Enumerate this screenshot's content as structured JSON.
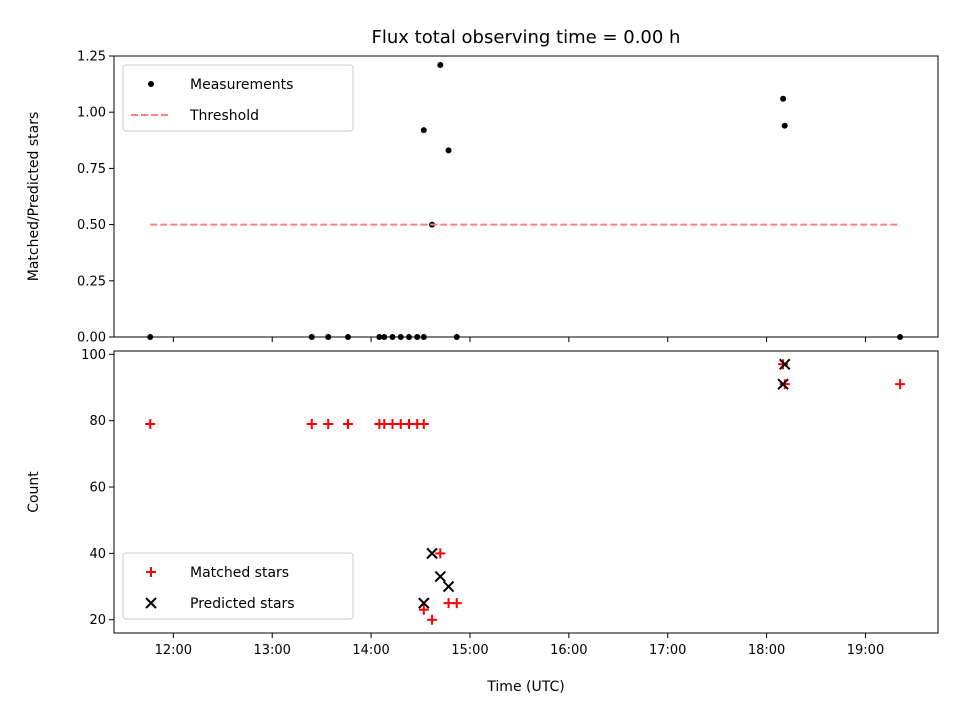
{
  "chart_data": [
    {
      "type": "scatter",
      "title": "Flux total observing time = 0.00 h",
      "xlabel": "",
      "ylabel": "Matched/Predicted stars",
      "ylim": [
        0,
        1.25
      ],
      "xlim": [
        "11:24",
        "19:44"
      ],
      "yticks": [
        "0.00",
        "0.25",
        "0.50",
        "0.75",
        "1.00",
        "1.25"
      ],
      "legend_position": "top-left",
      "series": [
        {
          "name": "Measurements",
          "marker": "dot",
          "color": "#000000",
          "points": [
            {
              "x": "11:46",
              "y": 0
            },
            {
              "x": "13:24",
              "y": 0
            },
            {
              "x": "13:34",
              "y": 0
            },
            {
              "x": "13:46",
              "y": 0
            },
            {
              "x": "14:05",
              "y": 0
            },
            {
              "x": "14:08",
              "y": 0
            },
            {
              "x": "14:13",
              "y": 0
            },
            {
              "x": "14:18",
              "y": 0
            },
            {
              "x": "14:23",
              "y": 0
            },
            {
              "x": "14:28",
              "y": 0
            },
            {
              "x": "14:32",
              "y": 0
            },
            {
              "x": "14:52",
              "y": 0
            },
            {
              "x": "19:21",
              "y": 0
            },
            {
              "x": "14:32",
              "y": 0.92
            },
            {
              "x": "14:37",
              "y": 0.5
            },
            {
              "x": "14:42",
              "y": 1.21
            },
            {
              "x": "14:47",
              "y": 0.83
            },
            {
              "x": "18:10",
              "y": 1.06
            },
            {
              "x": "18:11",
              "y": 0.94
            }
          ]
        },
        {
          "name": "Threshold",
          "marker": "dashed-line",
          "color": "#ff7f7f",
          "points": [
            {
              "x": "11:46",
              "y": 0.5
            },
            {
              "x": "19:21",
              "y": 0.5
            }
          ]
        }
      ]
    },
    {
      "type": "scatter",
      "title": "",
      "xlabel": "Time (UTC)",
      "ylabel": "Count",
      "ylim": [
        16,
        101
      ],
      "xlim": [
        "11:24",
        "19:44"
      ],
      "xticks": [
        "12:00",
        "13:00",
        "14:00",
        "15:00",
        "16:00",
        "17:00",
        "18:00",
        "19:00"
      ],
      "yticks": [
        "20",
        "40",
        "60",
        "80",
        "100"
      ],
      "legend_position": "bottom-left",
      "series": [
        {
          "name": "Matched stars",
          "marker": "plus",
          "color": "#ff0000",
          "points": [
            {
              "x": "11:46",
              "y": 79
            },
            {
              "x": "13:24",
              "y": 79
            },
            {
              "x": "13:34",
              "y": 79
            },
            {
              "x": "13:46",
              "y": 79
            },
            {
              "x": "14:05",
              "y": 79
            },
            {
              "x": "14:08",
              "y": 79
            },
            {
              "x": "14:13",
              "y": 79
            },
            {
              "x": "14:18",
              "y": 79
            },
            {
              "x": "14:23",
              "y": 79
            },
            {
              "x": "14:28",
              "y": 79
            },
            {
              "x": "14:32",
              "y": 79
            },
            {
              "x": "14:32",
              "y": 23
            },
            {
              "x": "14:37",
              "y": 20
            },
            {
              "x": "14:42",
              "y": 40
            },
            {
              "x": "14:47",
              "y": 25
            },
            {
              "x": "14:52",
              "y": 25
            },
            {
              "x": "18:10",
              "y": 97
            },
            {
              "x": "18:11",
              "y": 91
            },
            {
              "x": "19:21",
              "y": 91
            }
          ]
        },
        {
          "name": "Predicted stars",
          "marker": "x",
          "color": "#000000",
          "points": [
            {
              "x": "14:32",
              "y": 25
            },
            {
              "x": "14:37",
              "y": 40
            },
            {
              "x": "14:42",
              "y": 33
            },
            {
              "x": "14:47",
              "y": 30
            },
            {
              "x": "18:10",
              "y": 91
            },
            {
              "x": "18:11",
              "y": 97
            }
          ]
        }
      ]
    }
  ]
}
